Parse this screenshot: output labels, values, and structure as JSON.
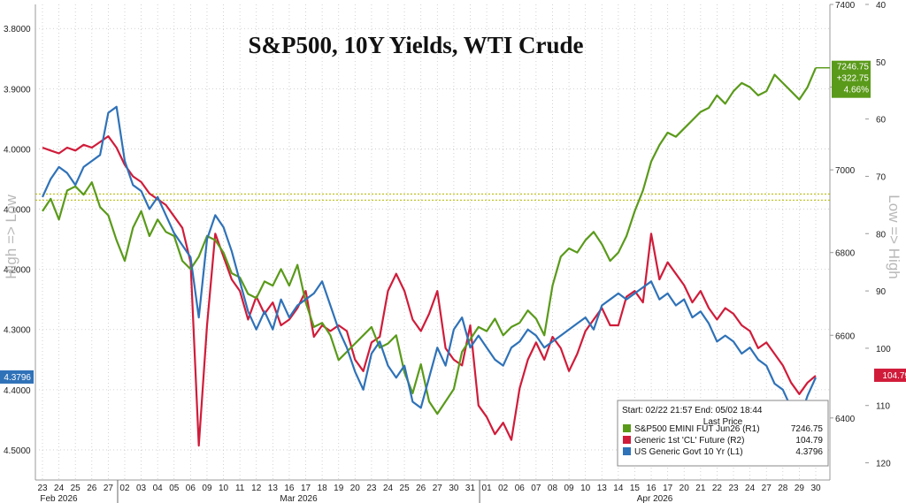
{
  "chart_data": {
    "type": "line",
    "title": "S&P500, 10Y Yields, WTI Crude",
    "left_axis_label": "High => Low",
    "right_axis_label": "Low => High",
    "x_days": [
      "23",
      "24",
      "25",
      "26",
      "27",
      "02",
      "03",
      "04",
      "05",
      "06",
      "09",
      "10",
      "11",
      "12",
      "13",
      "16",
      "17",
      "18",
      "19",
      "20",
      "23",
      "24",
      "25",
      "26",
      "27",
      "30",
      "31",
      "01",
      "02",
      "06",
      "07",
      "08",
      "09",
      "10",
      "13",
      "14",
      "15",
      "16",
      "17",
      "20",
      "21",
      "22",
      "23",
      "24",
      "27",
      "28",
      "29",
      "30"
    ],
    "x_months": [
      {
        "label": "Feb 2026",
        "day_index": 0
      },
      {
        "label": "Mar 2026",
        "day_index": 5
      },
      {
        "label": "Apr 2026",
        "day_index": 27
      }
    ],
    "axes": {
      "L1": {
        "ticks": [
          3.8,
          3.9,
          4.0,
          4.1,
          4.2,
          4.3,
          4.4,
          4.5
        ],
        "tick_labels": [
          "3.8000",
          "3.9000",
          "4.0000",
          "4.1000",
          "4.2000",
          "4.3000",
          "4.4000",
          "4.5000"
        ],
        "range": [
          3.76,
          4.55
        ],
        "inverted": true
      },
      "R1": {
        "ticks": [
          6400,
          6600,
          6800,
          7000,
          7200,
          7400
        ],
        "range": [
          6250,
          7400
        ]
      },
      "R2": {
        "ticks": [
          40,
          50,
          60,
          70,
          80,
          90,
          100,
          110,
          120
        ],
        "range": [
          40,
          123
        ],
        "inverted": true
      }
    },
    "series": [
      {
        "name": "S&P500 EMINI FUT Jun26",
        "axis": "R1",
        "color": "#5a9a1a",
        "last": "7246.75",
        "change": "+322.75",
        "pct": "4.66%",
        "x": [
          0,
          0.5,
          1,
          1.5,
          2,
          2.5,
          3,
          3.5,
          4,
          4.5,
          5,
          5.5,
          6,
          6.5,
          7,
          7.5,
          8,
          8.5,
          9,
          9.5,
          10,
          10.5,
          11,
          11.5,
          12,
          12.5,
          13,
          13.5,
          14,
          14.5,
          15,
          15.5,
          16,
          16.5,
          17,
          17.5,
          18,
          18.5,
          19,
          19.5,
          20,
          20.5,
          21,
          21.5,
          22,
          22.5,
          23,
          23.5,
          24,
          24.5,
          25,
          25.5,
          26,
          26.5,
          27,
          27.5,
          28,
          28.5,
          29,
          29.5,
          30,
          30.5,
          31,
          31.5,
          32,
          32.5,
          33,
          33.5,
          34,
          34.5,
          35,
          35.5,
          36,
          36.5,
          37,
          37.5,
          38,
          38.5,
          39,
          39.5,
          40,
          40.5,
          41,
          41.5,
          42,
          42.5,
          43,
          43.5,
          44,
          44.5,
          45,
          45.5,
          46,
          46.5,
          47
        ],
        "values": [
          6900,
          6930,
          6880,
          6950,
          6960,
          6940,
          6970,
          6910,
          6890,
          6830,
          6780,
          6860,
          6900,
          6840,
          6880,
          6850,
          6840,
          6780,
          6760,
          6790,
          6840,
          6830,
          6800,
          6750,
          6740,
          6700,
          6690,
          6730,
          6720,
          6760,
          6720,
          6770,
          6680,
          6620,
          6630,
          6600,
          6540,
          6560,
          6580,
          6600,
          6620,
          6570,
          6580,
          6600,
          6510,
          6460,
          6530,
          6440,
          6410,
          6440,
          6470,
          6560,
          6590,
          6620,
          6610,
          6640,
          6600,
          6620,
          6630,
          6660,
          6640,
          6600,
          6720,
          6790,
          6810,
          6800,
          6830,
          6850,
          6820,
          6780,
          6800,
          6840,
          6900,
          6950,
          7020,
          7060,
          7090,
          7080,
          7100,
          7120,
          7140,
          7150,
          7180,
          7160,
          7190,
          7210,
          7200,
          7180,
          7190,
          7230,
          7210,
          7190,
          7170,
          7200,
          7246.75
        ]
      },
      {
        "name": "Generic 1st 'CL' Future",
        "axis": "R2",
        "color": "#d01c3a",
        "last": "104.79",
        "x": [
          0,
          0.5,
          1,
          1.5,
          2,
          2.5,
          3,
          3.5,
          4,
          4.5,
          5,
          5.5,
          6,
          6.5,
          7,
          7.5,
          8,
          8.5,
          9,
          9.5,
          10,
          10.5,
          11,
          11.5,
          12,
          12.5,
          13,
          13.5,
          14,
          14.5,
          15,
          15.5,
          16,
          16.5,
          17,
          17.5,
          18,
          18.5,
          19,
          19.5,
          20,
          20.5,
          21,
          21.5,
          22,
          22.5,
          23,
          23.5,
          24,
          24.5,
          25,
          25.5,
          26,
          26.5,
          27,
          27.5,
          28,
          28.5,
          29,
          29.5,
          30,
          30.5,
          31,
          31.5,
          32,
          32.5,
          33,
          33.5,
          34,
          34.5,
          35,
          35.5,
          36,
          36.5,
          37,
          37.5,
          38,
          38.5,
          39,
          39.5,
          40,
          40.5,
          41,
          41.5,
          42,
          42.5,
          43,
          43.5,
          44,
          44.5,
          45,
          45.5,
          46,
          46.5,
          47
        ],
        "values": [
          65,
          65.5,
          66,
          65,
          65.5,
          64.5,
          65,
          64,
          63,
          65,
          68,
          70,
          71,
          73,
          74,
          75,
          77,
          79,
          85,
          117,
          96,
          80,
          84,
          88,
          90,
          95,
          91,
          94,
          92,
          96,
          95,
          93,
          90,
          98,
          96,
          97,
          96,
          97,
          102,
          104,
          99,
          98,
          90,
          87,
          90,
          95,
          97,
          94,
          90,
          100,
          102,
          103,
          96,
          110,
          112,
          115,
          113,
          116,
          107,
          102,
          99,
          102,
          98,
          100,
          104,
          101,
          97,
          95,
          93,
          96,
          96,
          91,
          90,
          92,
          80,
          88,
          85,
          87,
          89,
          92,
          90,
          93,
          95,
          93,
          94,
          96,
          97,
          100,
          99,
          101,
          103,
          106,
          108,
          106,
          104.79
        ]
      },
      {
        "name": "US Generic Govt 10 Yr",
        "axis": "L1",
        "color": "#2f72b8",
        "last": "4.3796",
        "x": [
          0,
          0.5,
          1,
          1.5,
          2,
          2.5,
          3,
          3.5,
          4,
          4.5,
          5,
          5.5,
          6,
          6.5,
          7,
          7.5,
          8,
          8.5,
          9,
          9.5,
          10,
          10.5,
          11,
          11.5,
          12,
          12.5,
          13,
          13.5,
          14,
          14.5,
          15,
          15.5,
          16,
          16.5,
          17,
          17.5,
          18,
          18.5,
          19,
          19.5,
          20,
          20.5,
          21,
          21.5,
          22,
          22.5,
          23,
          23.5,
          24,
          24.5,
          25,
          25.5,
          26,
          26.5,
          27,
          27.5,
          28,
          28.5,
          29,
          29.5,
          30,
          30.5,
          31,
          31.5,
          32,
          32.5,
          33,
          33.5,
          34,
          34.5,
          35,
          35.5,
          36,
          36.5,
          37,
          37.5,
          38,
          38.5,
          39,
          39.5,
          40,
          40.5,
          41,
          41.5,
          42,
          42.5,
          43,
          43.5,
          44,
          44.5,
          45,
          45.5,
          46,
          46.5,
          47
        ],
        "values": [
          4.08,
          4.05,
          4.03,
          4.04,
          4.06,
          4.03,
          4.02,
          4.01,
          3.94,
          3.93,
          4.02,
          4.06,
          4.07,
          4.1,
          4.08,
          4.11,
          4.14,
          4.16,
          4.18,
          4.28,
          4.15,
          4.11,
          4.13,
          4.17,
          4.22,
          4.27,
          4.3,
          4.27,
          4.3,
          4.25,
          4.28,
          4.26,
          4.25,
          4.24,
          4.22,
          4.26,
          4.3,
          4.33,
          4.37,
          4.4,
          4.34,
          4.32,
          4.36,
          4.38,
          4.36,
          4.42,
          4.43,
          4.38,
          4.33,
          4.36,
          4.3,
          4.28,
          4.33,
          4.31,
          4.33,
          4.35,
          4.36,
          4.33,
          4.32,
          4.3,
          4.31,
          4.33,
          4.32,
          4.31,
          4.3,
          4.29,
          4.28,
          4.3,
          4.26,
          4.25,
          4.24,
          4.25,
          4.24,
          4.23,
          4.22,
          4.25,
          4.24,
          4.26,
          4.25,
          4.28,
          4.27,
          4.29,
          4.32,
          4.31,
          4.32,
          4.34,
          4.33,
          4.35,
          4.36,
          4.39,
          4.4,
          4.43,
          4.45,
          4.41,
          4.3796
        ]
      }
    ],
    "reference_lines": [
      {
        "axis": "L1",
        "value": 4.085,
        "color": "#b3b800"
      },
      {
        "axis": "L1",
        "value": 4.075,
        "color": "#b3b800"
      }
    ],
    "highlight": {
      "axis": "L1",
      "value": "4.3796",
      "color": "#2f72b8"
    },
    "legend": {
      "placement": "bottom-right",
      "header": "Start: 02/22 21:57 End: 05/02 18:44",
      "subheader": "Last Price",
      "rows": [
        {
          "text": "S&P500 EMINI FUT Jun26  (R1)",
          "value": "7246.75",
          "color": "#5a9a1a"
        },
        {
          "text": "Generic 1st 'CL' Future  (R2)",
          "value": "104.79",
          "color": "#d01c3a"
        },
        {
          "text": "US Generic Govt 10 Yr   (L1)",
          "value": "4.3796",
          "color": "#2f72b8"
        }
      ]
    },
    "grid": true
  }
}
